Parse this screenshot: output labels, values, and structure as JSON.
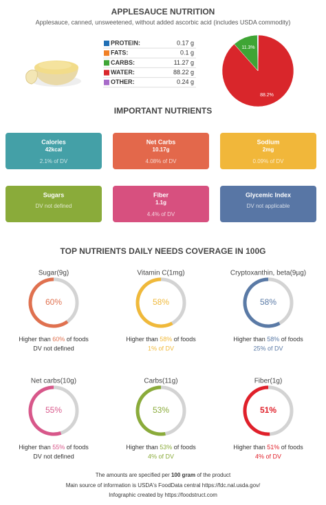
{
  "header": {
    "title": "APPLESAUCE NUTRITION",
    "subtitle": "Applesauce, canned, unsweetened, without added ascorbic acid (includes USDA commodity)"
  },
  "macros": [
    {
      "name": "PROTEIN:",
      "grams": 0.17,
      "label": "0.17 g",
      "color": "#1f6fb5"
    },
    {
      "name": "FATS:",
      "grams": 0.1,
      "label": "0.1 g",
      "color": "#f07f24"
    },
    {
      "name": "CARBS:",
      "grams": 11.27,
      "label": "11.27 g",
      "color": "#3fa535"
    },
    {
      "name": "WATER:",
      "grams": 88.22,
      "label": "88.22 g",
      "color": "#d9262b"
    },
    {
      "name": "OTHER:",
      "grams": 0.24,
      "label": "0.24 g",
      "color": "#a76bc9"
    }
  ],
  "pie_labels": [
    {
      "value": 11.3,
      "label": "11.3%"
    },
    {
      "value": 88.2,
      "label": "88.2%"
    }
  ],
  "important": {
    "title": "IMPORTANT NUTRIENTS",
    "cards": [
      {
        "name": "Calories",
        "value": "42kcal",
        "dv": "2.1% of DV",
        "color": "#44a0a7"
      },
      {
        "name": "Net Carbs",
        "value": "10.17g",
        "dv": "4.08% of DV",
        "color": "#e3684b"
      },
      {
        "name": "Sodium",
        "value": "2mg",
        "dv": "0.09% of DV",
        "color": "#f1b73a"
      },
      {
        "name": "Sugars",
        "dv": "DV not defined",
        "color": "#8aab3a"
      },
      {
        "name": "Fiber",
        "value": "1.1g",
        "dv": "4.4% of DV",
        "color": "#d7507f"
      },
      {
        "name": "Glycemic Index",
        "dv": "DV not applicable",
        "color": "#5876a5"
      }
    ]
  },
  "coverage": {
    "title": "TOP NUTRIENTS DAILY NEEDS COVERAGE IN 100G",
    "prefix": "Higher than ",
    "suffix": " of foods",
    "items": [
      {
        "name": "Sugar(9g)",
        "pct": 60,
        "pct_label": "60%",
        "dv": "DV not defined",
        "dv_highlight": false,
        "color": "#e0714f"
      },
      {
        "name": "Vitamin C(1mg)",
        "pct": 58,
        "pct_label": "58%",
        "dv": "1% of DV",
        "dv_highlight": true,
        "color": "#f0b93a"
      },
      {
        "name": "Cryptoxanthin, beta(9µg)",
        "pct": 58,
        "pct_label": "58%",
        "dv": "25% of DV",
        "dv_highlight": true,
        "color": "#5a7aa6"
      },
      {
        "name": "Net carbs(10g)",
        "pct": 55,
        "pct_label": "55%",
        "dv": "DV not defined",
        "dv_highlight": false,
        "color": "#d8578a"
      },
      {
        "name": "Carbs(11g)",
        "pct": 53,
        "pct_label": "53%",
        "dv": "4% of DV",
        "dv_highlight": true,
        "color": "#8aab3a"
      },
      {
        "name": "Fiber(1g)",
        "pct": 51,
        "pct_label": "51%",
        "dv": "4% of DV",
        "dv_highlight": true,
        "color": "#e0202a"
      }
    ]
  },
  "footer": {
    "line1_prefix": "The amounts are specified per ",
    "line1_bold": "100 gram",
    "line1_suffix": " of the product",
    "line2": "Main source of information is USDA's FoodData central https://fdc.nal.usda.gov/",
    "line3": "Infographic created by https://foodstruct.com"
  }
}
